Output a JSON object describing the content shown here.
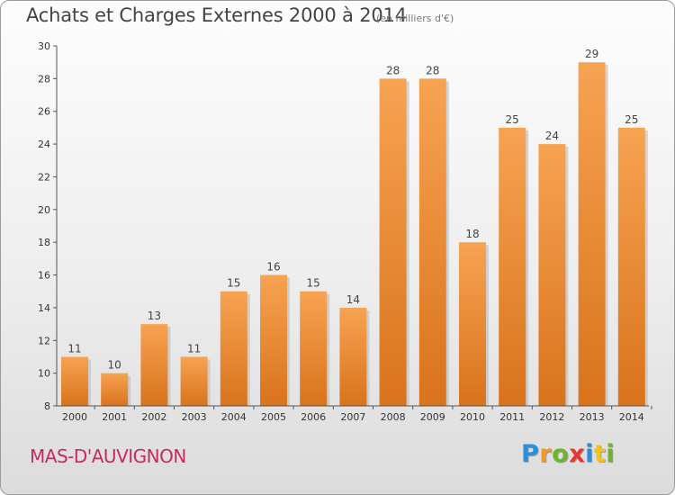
{
  "header": {
    "title": "Achats et Charges Externes 2000 à 2014",
    "unit": "(en milliers d'€)"
  },
  "footer": {
    "commune": "MAS-D'AUVIGNON",
    "logo_letters": [
      {
        "ch": "P",
        "color": "#2e8fd6"
      },
      {
        "ch": "r",
        "color": "#f39a1e"
      },
      {
        "ch": "o",
        "color": "#6fb52c"
      },
      {
        "ch": "x",
        "color": "#e8352e"
      },
      {
        "ch": "i",
        "color": "#2e8fd6"
      },
      {
        "ch": "t",
        "color": "#f3c41e"
      },
      {
        "ch": "i",
        "color": "#6fb52c"
      }
    ]
  },
  "chart_data": {
    "type": "bar",
    "categories": [
      "2000",
      "2001",
      "2002",
      "2003",
      "2004",
      "2005",
      "2006",
      "2007",
      "2008",
      "2009",
      "2010",
      "2011",
      "2012",
      "2013",
      "2014"
    ],
    "values": [
      11,
      10,
      13,
      11,
      15,
      16,
      15,
      14,
      28,
      28,
      18,
      25,
      24,
      29,
      25
    ],
    "ylim": [
      8,
      30
    ],
    "yticks": [
      8,
      10,
      12,
      14,
      16,
      18,
      20,
      22,
      24,
      26,
      28,
      30
    ],
    "grid": false,
    "bar_color_top": "#f7a352",
    "bar_color_bottom": "#d9731c",
    "axis_color": "#555555"
  }
}
